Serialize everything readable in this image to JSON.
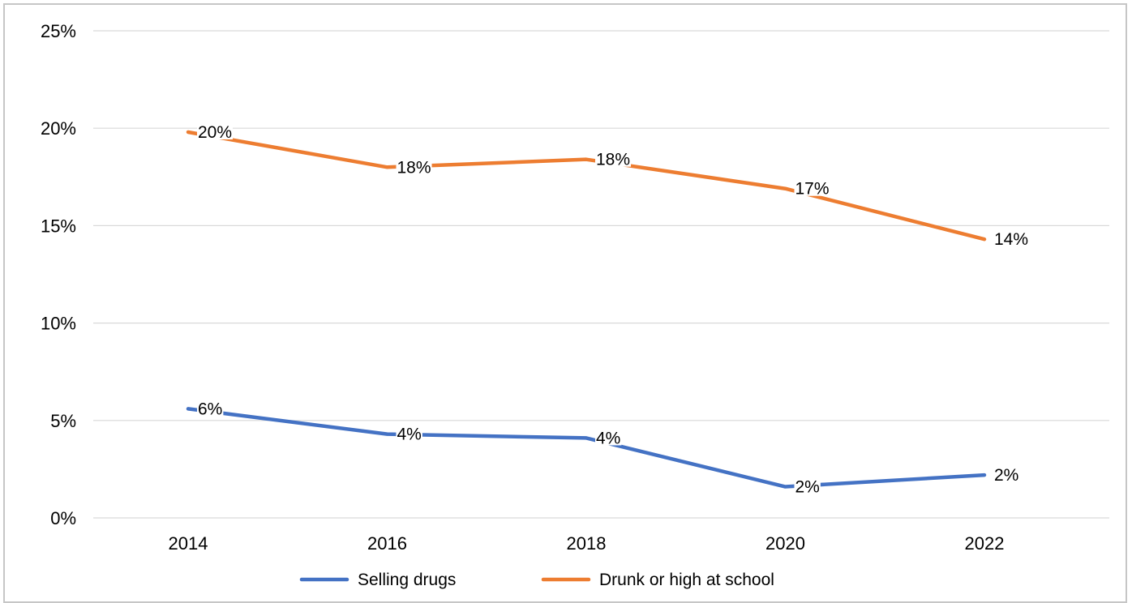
{
  "chart_data": {
    "type": "line",
    "x": [
      "2014",
      "2016",
      "2018",
      "2020",
      "2022"
    ],
    "series": [
      {
        "name": "Selling drugs",
        "color": "#4472c4",
        "values": [
          5.6,
          4.3,
          4.1,
          1.6,
          2.2
        ],
        "labels": [
          "6%",
          "4%",
          "4%",
          "2%",
          "2%"
        ]
      },
      {
        "name": "Drunk or high at school",
        "color": "#ed7d31",
        "values": [
          19.8,
          18.0,
          18.4,
          16.9,
          14.3
        ],
        "labels": [
          "20%",
          "18%",
          "18%",
          "17%",
          "14%"
        ]
      }
    ],
    "y_ticks": [
      0,
      5,
      10,
      15,
      20,
      25
    ],
    "y_tick_labels": [
      "0%",
      "5%",
      "10%",
      "15%",
      "20%",
      "25%"
    ],
    "ylim": [
      0,
      25
    ],
    "grid": true,
    "legend": "bottom"
  }
}
